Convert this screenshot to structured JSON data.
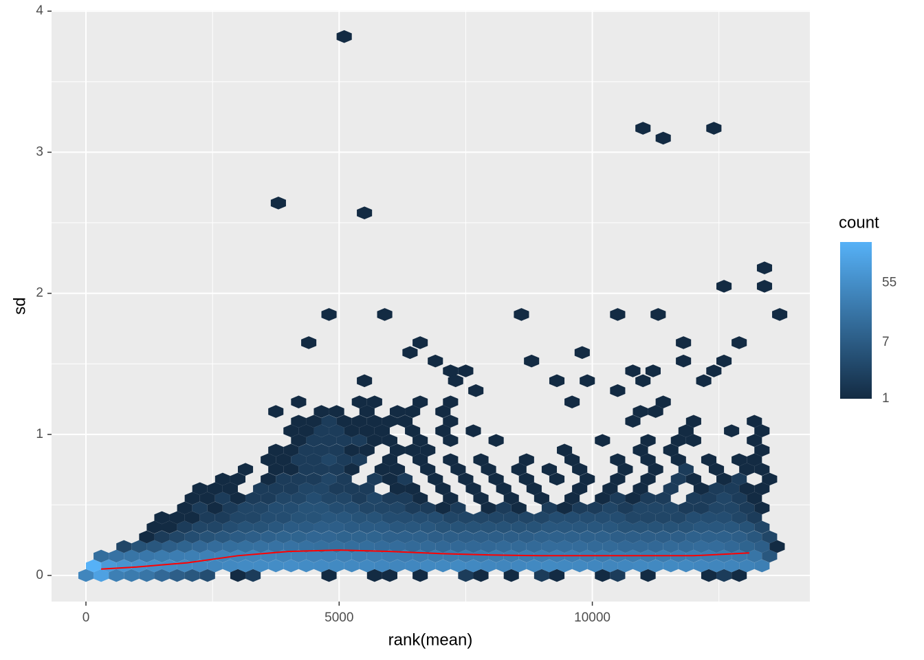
{
  "chart_data": {
    "type": "hexbin",
    "x_label": "rank(mean)",
    "y_label": "sd",
    "xlim": [
      -679,
      14296
    ],
    "ylim": [
      -0.185,
      4.006
    ],
    "xticks": [
      0,
      5000,
      10000
    ],
    "yticks": [
      0,
      1,
      2,
      3,
      4
    ],
    "x_minor_breaks": [
      2500,
      7500,
      12500
    ],
    "y_minor_breaks": [
      0.5,
      1.5,
      2.5,
      3.5
    ],
    "grid": true,
    "legend": {
      "title": "count",
      "ticks": [
        1,
        7,
        55
      ],
      "lim": [
        1,
        226
      ],
      "scale": "log",
      "colors": [
        "#132B43",
        "#56B1F7"
      ]
    },
    "rows": [
      {
        "y": 0,
        "x": [
          0,
          300,
          600,
          900,
          1200,
          1500,
          1800,
          2100,
          2400,
          3000,
          3300,
          4800,
          5700,
          6000,
          6600,
          7500,
          7800,
          8400,
          9000,
          9300,
          10200,
          10500,
          11100,
          12300,
          12600,
          12900
        ],
        "count": [
          40,
          120,
          30,
          25,
          20,
          12,
          8,
          6,
          4,
          1,
          2,
          1,
          1,
          1,
          1,
          2,
          1,
          1,
          2,
          1,
          1,
          2,
          1,
          1,
          2,
          1
        ]
      },
      {
        "y": 0.068,
        "x": [
          150,
          450,
          750,
          1050,
          1350,
          1650,
          1950,
          2250,
          2550,
          2850,
          3150,
          3450,
          3750,
          4050,
          4350,
          4650,
          4950,
          5250,
          5550,
          5850,
          6150,
          6450,
          6750,
          7050,
          7350,
          7650,
          7950,
          8250,
          8550,
          8850,
          9150,
          9450,
          9750,
          10050,
          10350,
          10650,
          10950,
          11250,
          11550,
          11850,
          12150,
          12450,
          12750,
          13050,
          13350
        ],
        "count": [
          226,
          90,
          70,
          60,
          55,
          50,
          45,
          42,
          40,
          45,
          48,
          50,
          52,
          55,
          50,
          48,
          46,
          45,
          44,
          42,
          40,
          42,
          44,
          45,
          46,
          44,
          42,
          40,
          42,
          44,
          46,
          45,
          44,
          42,
          40,
          42,
          44,
          45,
          46,
          44,
          42,
          40,
          38,
          35,
          30
        ]
      },
      {
        "y": 0.137,
        "x": [
          300,
          600,
          900,
          1200,
          1500,
          1800,
          2100,
          2400,
          2700,
          3000,
          3300,
          3600,
          3900,
          4200,
          4500,
          4800,
          5100,
          5400,
          5700,
          6000,
          6300,
          6600,
          6900,
          7200,
          7500,
          7800,
          8100,
          8400,
          8700,
          9000,
          9300,
          9600,
          9900,
          10200,
          10500,
          10800,
          11100,
          11400,
          11700,
          12000,
          12300,
          12600,
          12900,
          13200,
          13500
        ],
        "count": [
          15,
          18,
          20,
          22,
          25,
          28,
          30,
          32,
          35,
          36,
          38,
          38,
          36,
          35,
          34,
          33,
          32,
          30,
          30,
          28,
          28,
          27,
          26,
          26,
          25,
          25,
          26,
          26,
          27,
          27,
          28,
          28,
          27,
          26,
          26,
          25,
          25,
          26,
          27,
          28,
          28,
          26,
          24,
          20,
          6
        ]
      },
      {
        "y": 0.205,
        "x": [
          750,
          1050,
          1350,
          1650,
          1950,
          2250,
          2550,
          2850,
          3150,
          3450,
          3750,
          4050,
          4350,
          4650,
          4950,
          5250,
          5550,
          5850,
          6150,
          6450,
          6750,
          7050,
          7350,
          7650,
          7950,
          8250,
          8550,
          8850,
          9150,
          9450,
          9750,
          10050,
          10350,
          10650,
          10950,
          11250,
          11550,
          11850,
          12150,
          12450,
          12750,
          13050,
          13350,
          13650
        ],
        "count": [
          3,
          5,
          6,
          8,
          10,
          12,
          14,
          15,
          16,
          17,
          18,
          18,
          17,
          16,
          16,
          15,
          15,
          14,
          14,
          13,
          13,
          12,
          12,
          12,
          12,
          13,
          13,
          13,
          14,
          14,
          14,
          13,
          13,
          12,
          12,
          12,
          13,
          13,
          14,
          14,
          12,
          10,
          8,
          1
        ]
      },
      {
        "y": 0.273,
        "x": [
          1200,
          1500,
          1800,
          2100,
          2400,
          2700,
          3000,
          3300,
          3600,
          3900,
          4200,
          4500,
          4800,
          5100,
          5400,
          5700,
          6000,
          6300,
          6600,
          6900,
          7200,
          7500,
          7800,
          8100,
          8400,
          8700,
          9000,
          9300,
          9600,
          9900,
          10200,
          10500,
          10800,
          11100,
          11400,
          11700,
          12000,
          12300,
          12600,
          12900,
          13200,
          13500
        ],
        "count": [
          1,
          2,
          3,
          4,
          5,
          6,
          7,
          8,
          9,
          10,
          10,
          11,
          11,
          10,
          10,
          10,
          9,
          9,
          9,
          8,
          8,
          8,
          8,
          8,
          8,
          8,
          9,
          9,
          9,
          9,
          9,
          8,
          8,
          8,
          8,
          8,
          9,
          9,
          9,
          8,
          6,
          3
        ]
      },
      {
        "y": 0.342,
        "x": [
          1350,
          1650,
          1950,
          2250,
          2550,
          2850,
          3150,
          3450,
          3750,
          4050,
          4350,
          4650,
          4950,
          5250,
          5550,
          5850,
          6150,
          6450,
          6750,
          7050,
          7350,
          7650,
          7950,
          8250,
          8550,
          8850,
          9150,
          9450,
          9750,
          10050,
          10350,
          10650,
          10950,
          11250,
          11550,
          11850,
          12150,
          12450,
          12750,
          13050,
          13350
        ],
        "count": [
          1,
          1,
          2,
          3,
          3,
          4,
          5,
          5,
          6,
          7,
          7,
          8,
          8,
          7,
          7,
          7,
          6,
          6,
          6,
          5,
          5,
          5,
          5,
          5,
          5,
          5,
          6,
          6,
          6,
          6,
          6,
          5,
          5,
          5,
          5,
          5,
          6,
          6,
          6,
          5,
          3
        ]
      },
      {
        "y": 0.41,
        "x": [
          1500,
          1800,
          2100,
          2400,
          2700,
          3000,
          3300,
          3600,
          3900,
          4200,
          4500,
          4800,
          5100,
          5400,
          5700,
          6000,
          6300,
          6600,
          6900,
          7200,
          7500,
          7800,
          8100,
          8400,
          8700,
          9000,
          9300,
          9600,
          9900,
          10200,
          10500,
          10800,
          11100,
          11400,
          11700,
          12000,
          12300,
          12600,
          12900,
          13200
        ],
        "count": [
          1,
          1,
          1,
          2,
          2,
          3,
          3,
          4,
          4,
          5,
          5,
          6,
          6,
          5,
          5,
          4,
          4,
          4,
          4,
          3,
          3,
          3,
          3,
          3,
          3,
          3,
          4,
          4,
          4,
          4,
          4,
          3,
          3,
          3,
          3,
          4,
          4,
          4,
          3,
          2
        ]
      },
      {
        "y": 0.478,
        "x": [
          1950,
          2250,
          2550,
          2850,
          3150,
          3450,
          3750,
          4050,
          4350,
          4650,
          4950,
          5250,
          5550,
          5850,
          6150,
          6450,
          6750,
          7050,
          7350,
          7950,
          8250,
          8550,
          9150,
          9450,
          9750,
          10050,
          10350,
          10650,
          10950,
          11250,
          11550,
          11850,
          12150,
          12450,
          12750,
          13050,
          13350
        ],
        "count": [
          1,
          2,
          1,
          2,
          3,
          3,
          4,
          4,
          5,
          5,
          4,
          4,
          3,
          3,
          3,
          2,
          2,
          1,
          2,
          1,
          2,
          1,
          2,
          1,
          2,
          2,
          3,
          2,
          3,
          3,
          3,
          2,
          2,
          3,
          3,
          2,
          1
        ]
      },
      {
        "y": 0.547,
        "x": [
          2100,
          2400,
          2700,
          3000,
          3300,
          3600,
          3900,
          4200,
          4500,
          4800,
          5100,
          5400,
          5700,
          6000,
          6300,
          6600,
          7200,
          7800,
          8400,
          9000,
          9600,
          10200,
          10500,
          10800,
          11100,
          11400,
          12000,
          12300,
          12600,
          12900,
          13200
        ],
        "count": [
          1,
          1,
          2,
          1,
          2,
          2,
          3,
          3,
          4,
          3,
          3,
          2,
          3,
          2,
          2,
          1,
          1,
          1,
          1,
          1,
          1,
          1,
          2,
          1,
          2,
          2,
          2,
          2,
          3,
          2,
          1
        ]
      },
      {
        "y": 0.615,
        "x": [
          2250,
          2550,
          2850,
          3450,
          3750,
          4050,
          4350,
          4650,
          4950,
          5250,
          5550,
          6150,
          6450,
          7050,
          7650,
          8250,
          8850,
          9750,
          10350,
          10950,
          11550,
          12150,
          12450,
          12750,
          13050,
          13350
        ],
        "count": [
          1,
          1,
          1,
          2,
          2,
          2,
          3,
          3,
          2,
          2,
          2,
          1,
          1,
          1,
          1,
          1,
          1,
          1,
          1,
          1,
          2,
          1,
          2,
          2,
          1,
          1
        ]
      },
      {
        "y": 0.683,
        "x": [
          2700,
          3000,
          3600,
          3900,
          4200,
          4500,
          4800,
          5100,
          5700,
          6000,
          6300,
          6900,
          7500,
          8100,
          8700,
          9300,
          9900,
          10500,
          11100,
          11700,
          12000,
          12600,
          12900,
          13500
        ],
        "count": [
          1,
          1,
          1,
          2,
          2,
          2,
          3,
          2,
          2,
          1,
          2,
          1,
          1,
          1,
          1,
          1,
          1,
          1,
          1,
          2,
          1,
          1,
          2,
          1
        ]
      },
      {
        "y": 0.752,
        "x": [
          3150,
          3750,
          4050,
          4350,
          4650,
          4950,
          5250,
          5850,
          6150,
          6750,
          7350,
          7950,
          8550,
          9150,
          9750,
          10650,
          11250,
          11850,
          12450,
          13050,
          13350
        ],
        "count": [
          1,
          1,
          1,
          2,
          2,
          2,
          1,
          1,
          1,
          1,
          1,
          1,
          1,
          1,
          1,
          1,
          1,
          2,
          1,
          1,
          1
        ]
      },
      {
        "y": 0.82,
        "x": [
          3600,
          3900,
          4200,
          4500,
          4800,
          5100,
          5400,
          6000,
          6600,
          7200,
          7800,
          8700,
          9600,
          10500,
          11100,
          11700,
          12300,
          12900,
          13200
        ],
        "count": [
          1,
          1,
          2,
          2,
          3,
          2,
          2,
          1,
          1,
          1,
          1,
          1,
          1,
          1,
          1,
          1,
          1,
          1,
          1
        ]
      },
      {
        "y": 0.888,
        "x": [
          3750,
          4050,
          4350,
          4650,
          4950,
          5250,
          5550,
          6150,
          6450,
          6750,
          9450,
          10950,
          11550,
          13350
        ],
        "count": [
          1,
          1,
          2,
          2,
          2,
          1,
          1,
          1,
          1,
          1,
          1,
          1,
          1,
          1
        ]
      },
      {
        "y": 0.957,
        "x": [
          4200,
          4500,
          4800,
          5100,
          5400,
          5700,
          6000,
          6600,
          7200,
          8100,
          10200,
          11100,
          11700,
          12000,
          13200
        ],
        "count": [
          1,
          2,
          2,
          2,
          2,
          1,
          1,
          1,
          1,
          1,
          1,
          1,
          1,
          1,
          1
        ]
      },
      {
        "y": 1.025,
        "x": [
          4050,
          4350,
          4650,
          4950,
          5250,
          5550,
          5850,
          6450,
          7050,
          7650,
          11850,
          12750,
          13350
        ],
        "count": [
          1,
          1,
          2,
          2,
          1,
          1,
          1,
          1,
          1,
          1,
          1,
          1,
          1
        ]
      },
      {
        "y": 1.093,
        "x": [
          4200,
          4500,
          4800,
          5100,
          5400,
          5700,
          6000,
          6300,
          7200,
          10800,
          12000,
          13200
        ],
        "count": [
          1,
          1,
          2,
          1,
          1,
          1,
          1,
          1,
          1,
          1,
          1,
          1
        ]
      },
      {
        "y": 1.162,
        "x": [
          3750,
          4650,
          4950,
          5550,
          6150,
          6450,
          7050,
          10950,
          11250
        ],
        "count": [
          1,
          1,
          1,
          1,
          1,
          1,
          1,
          1,
          1
        ]
      },
      {
        "y": 1.23,
        "x": [
          4200,
          5400,
          5700,
          6600,
          7200,
          9600,
          11400
        ],
        "count": [
          1,
          1,
          1,
          1,
          1,
          1,
          1
        ]
      }
    ],
    "sparse": {
      "x": [
        5100,
        3800,
        5500,
        11000,
        11400,
        12400,
        13400,
        13400,
        12600,
        13700,
        4800,
        5900,
        8600,
        10500,
        11300,
        4400,
        6600,
        11800,
        12900,
        6400,
        9800,
        6900,
        8800,
        11800,
        12600,
        7200,
        7500,
        10800,
        11200,
        12400,
        5500,
        7300,
        9300,
        9900,
        11000,
        12200,
        7700,
        10500
      ],
      "y": [
        3.82,
        2.64,
        2.57,
        3.17,
        3.1,
        3.17,
        2.18,
        2.05,
        2.05,
        1.85,
        1.85,
        1.85,
        1.85,
        1.85,
        1.85,
        1.65,
        1.65,
        1.65,
        1.65,
        1.58,
        1.58,
        1.52,
        1.52,
        1.52,
        1.52,
        1.45,
        1.45,
        1.45,
        1.45,
        1.45,
        1.38,
        1.38,
        1.38,
        1.38,
        1.38,
        1.38,
        1.31,
        1.31
      ],
      "count": [
        1,
        1,
        1,
        1,
        1,
        1,
        1,
        1,
        1,
        1,
        1,
        1,
        1,
        1,
        1,
        1,
        1,
        1,
        1,
        1,
        1,
        1,
        1,
        1,
        1,
        1,
        1,
        1,
        1,
        1,
        1,
        1,
        1,
        1,
        1,
        1,
        1,
        1
      ]
    },
    "smooth": {
      "color": "#FF0000",
      "x": [
        300,
        1000,
        2000,
        3000,
        4000,
        5000,
        6000,
        7000,
        8000,
        9000,
        10000,
        11000,
        12000,
        13100
      ],
      "y": [
        0.045,
        0.06,
        0.09,
        0.14,
        0.17,
        0.18,
        0.17,
        0.155,
        0.145,
        0.14,
        0.14,
        0.14,
        0.14,
        0.16
      ]
    }
  }
}
